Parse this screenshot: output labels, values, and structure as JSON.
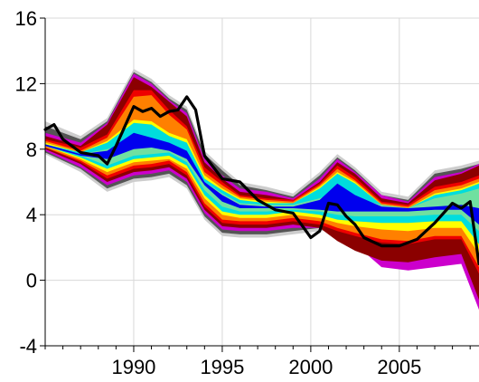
{
  "chart_data": {
    "type": "area",
    "title": "",
    "xlabel": "",
    "ylabel": "",
    "xlim": [
      1985,
      2009.5
    ],
    "ylim": [
      -4,
      16
    ],
    "grid": true,
    "yticks": [
      -4,
      0,
      4,
      8,
      12,
      16
    ],
    "xticks": [
      1990,
      1995,
      2000,
      2005
    ],
    "ytick_labels": [
      "-4",
      "0",
      "4",
      "8",
      "12",
      "16"
    ],
    "xtick_labels": [
      "1990",
      "1995",
      "2000",
      "2005"
    ],
    "x": [
      1985.0,
      1987.0,
      1988.5,
      1990.0,
      1991.0,
      1992.0,
      1993.0,
      1994.0,
      1995.0,
      1996.0,
      1997.5,
      1999.0,
      2000.5,
      2001.5,
      2002.5,
      2004.0,
      2005.5,
      2007.0,
      2008.5,
      2009.5
    ],
    "fan_bands": [
      {
        "color": "#CDCDCD",
        "lower": [
          7.7,
          6.6,
          5.4,
          6.0,
          6.1,
          6.3,
          5.6,
          3.7,
          2.7,
          2.6,
          2.6,
          2.8,
          3.0,
          3.1,
          3.2,
          3.3,
          3.4,
          3.4,
          3.1,
          1.5
        ],
        "upper": [
          9.7,
          8.8,
          9.9,
          12.9,
          12.3,
          11.3,
          10.6,
          7.9,
          6.9,
          6.0,
          5.7,
          5.3,
          6.6,
          7.7,
          6.9,
          5.4,
          5.1,
          6.7,
          7.0,
          7.3
        ]
      },
      {
        "color": "#555555",
        "lower": [
          7.8,
          6.8,
          5.6,
          6.2,
          6.3,
          6.5,
          5.8,
          3.9,
          2.9,
          2.8,
          2.8,
          3.0,
          3.2,
          3.3,
          3.4,
          3.5,
          3.6,
          3.6,
          3.3,
          1.7
        ],
        "upper": [
          9.4,
          8.6,
          9.7,
          12.7,
          12.1,
          11.1,
          10.4,
          7.7,
          6.7,
          5.8,
          5.5,
          5.1,
          6.4,
          7.5,
          6.7,
          5.2,
          4.9,
          6.5,
          6.8,
          7.1
        ]
      },
      {
        "color": "#CC00CC",
        "lower": [
          7.9,
          6.9,
          5.8,
          6.4,
          6.5,
          6.7,
          6.0,
          4.1,
          3.1,
          3.0,
          3.0,
          3.2,
          3.2,
          2.8,
          2.2,
          0.8,
          0.6,
          0.8,
          1.0,
          -1.8
        ],
        "upper": [
          9.0,
          8.4,
          9.6,
          12.6,
          12.0,
          11.0,
          10.2,
          7.4,
          6.4,
          5.6,
          5.4,
          5.0,
          6.2,
          7.4,
          6.6,
          5.2,
          4.8,
          6.3,
          6.6,
          7.1
        ]
      },
      {
        "color": "#8B0000",
        "lower": [
          8.0,
          7.1,
          6.0,
          6.6,
          6.7,
          6.9,
          6.2,
          4.3,
          3.3,
          3.2,
          3.2,
          3.4,
          3.2,
          2.4,
          1.8,
          1.2,
          1.1,
          1.4,
          1.6,
          -1.2
        ],
        "upper": [
          8.8,
          8.2,
          9.5,
          12.4,
          11.8,
          10.9,
          10.0,
          7.2,
          6.2,
          5.4,
          5.2,
          4.9,
          6.0,
          7.2,
          6.5,
          5.0,
          4.7,
          6.1,
          6.5,
          7.0
        ]
      },
      {
        "color": "#EE0000",
        "lower": [
          8.1,
          7.2,
          6.2,
          6.8,
          6.9,
          7.1,
          6.4,
          4.5,
          3.5,
          3.4,
          3.4,
          3.6,
          3.4,
          3.0,
          2.7,
          2.3,
          2.2,
          2.5,
          2.5,
          0.4
        ],
        "upper": [
          8.6,
          8.1,
          8.9,
          11.6,
          11.6,
          10.4,
          9.4,
          6.9,
          6.0,
          5.2,
          5.0,
          4.9,
          5.9,
          7.0,
          6.3,
          4.8,
          4.6,
          5.7,
          6.0,
          6.4
        ]
      },
      {
        "color": "#FF8000",
        "lower": [
          8.1,
          7.3,
          6.4,
          7.0,
          7.1,
          7.3,
          6.6,
          4.7,
          3.7,
          3.6,
          3.6,
          3.8,
          3.6,
          3.2,
          2.9,
          2.5,
          2.4,
          2.7,
          2.7,
          0.8
        ],
        "upper": [
          8.5,
          7.9,
          8.7,
          11.2,
          11.3,
          10.1,
          9.2,
          6.6,
          5.8,
          5.1,
          4.9,
          4.8,
          5.8,
          6.8,
          6.1,
          4.7,
          4.5,
          5.5,
          5.8,
          6.2
        ]
      },
      {
        "color": "#FFFF00",
        "lower": [
          8.2,
          7.4,
          6.6,
          7.2,
          7.3,
          7.4,
          6.8,
          5.0,
          4.0,
          3.8,
          3.8,
          4.0,
          3.8,
          3.5,
          3.3,
          3.1,
          3.0,
          3.2,
          3.2,
          1.6
        ],
        "upper": [
          8.4,
          7.8,
          8.5,
          9.8,
          9.7,
          9.0,
          8.6,
          6.4,
          5.6,
          5.0,
          4.8,
          4.7,
          5.7,
          6.6,
          6.0,
          4.6,
          4.4,
          5.3,
          5.6,
          6.0
        ]
      },
      {
        "color": "#00DDDD",
        "lower": [
          8.2,
          7.5,
          6.8,
          7.4,
          7.5,
          7.6,
          7.0,
          5.2,
          4.2,
          4.0,
          4.0,
          4.2,
          4.0,
          3.7,
          3.6,
          3.5,
          3.5,
          3.6,
          3.6,
          2.2
        ],
        "upper": [
          8.3,
          7.8,
          8.4,
          9.6,
          9.5,
          8.8,
          8.4,
          6.2,
          5.5,
          4.9,
          4.7,
          4.7,
          5.6,
          6.5,
          5.9,
          4.6,
          4.4,
          5.2,
          5.5,
          5.9
        ]
      },
      {
        "color": "#70E0A0",
        "lower": [
          8.2,
          7.6,
          7.0,
          7.6,
          7.7,
          7.8,
          7.2,
          5.5,
          4.5,
          4.2,
          4.2,
          4.3,
          4.2,
          4.0,
          3.9,
          3.9,
          3.9,
          4.0,
          4.0,
          3.0
        ],
        "upper": [
          8.3,
          7.7,
          8.0,
          8.5,
          8.4,
          8.1,
          7.8,
          6.0,
          5.3,
          4.7,
          4.6,
          4.6,
          5.0,
          5.4,
          5.0,
          4.6,
          4.4,
          5.0,
          5.3,
          5.6
        ]
      },
      {
        "color": "#0000EE",
        "lower": [
          8.2,
          7.6,
          7.4,
          8.0,
          8.1,
          7.9,
          7.4,
          5.8,
          4.8,
          4.4,
          4.4,
          4.4,
          4.3,
          4.2,
          4.2,
          4.2,
          4.2,
          4.3,
          4.3,
          3.4
        ],
        "upper": [
          8.3,
          7.7,
          7.9,
          9.0,
          8.7,
          8.4,
          7.9,
          6.0,
          5.2,
          4.6,
          4.5,
          4.5,
          4.9,
          5.9,
          5.2,
          4.5,
          4.4,
          4.5,
          4.6,
          4.4
        ]
      }
    ],
    "series": [
      {
        "color": "#000000",
        "x": [
          1985.0,
          1985.5,
          1986.0,
          1987.0,
          1988.0,
          1988.5,
          1989.0,
          1990.0,
          1990.5,
          1991.0,
          1991.5,
          1992.0,
          1992.5,
          1993.0,
          1993.5,
          1994.0,
          1995.0,
          1996.0,
          1997.0,
          1998.0,
          1999.0,
          2000.0,
          2000.5,
          2001.0,
          2001.5,
          2002.0,
          2002.5,
          2003.0,
          2004.0,
          2005.0,
          2006.0,
          2007.0,
          2008.0,
          2008.5,
          2009.0,
          2009.5
        ],
        "y": [
          9.2,
          9.5,
          8.6,
          7.8,
          7.6,
          7.1,
          8.2,
          10.6,
          10.3,
          10.5,
          10.0,
          10.3,
          10.4,
          11.2,
          10.4,
          7.6,
          6.2,
          6.0,
          4.9,
          4.3,
          4.1,
          2.6,
          3.0,
          4.7,
          4.6,
          3.9,
          3.4,
          2.6,
          2.1,
          2.1,
          2.5,
          3.5,
          4.7,
          4.4,
          4.8,
          1.0
        ]
      }
    ]
  }
}
